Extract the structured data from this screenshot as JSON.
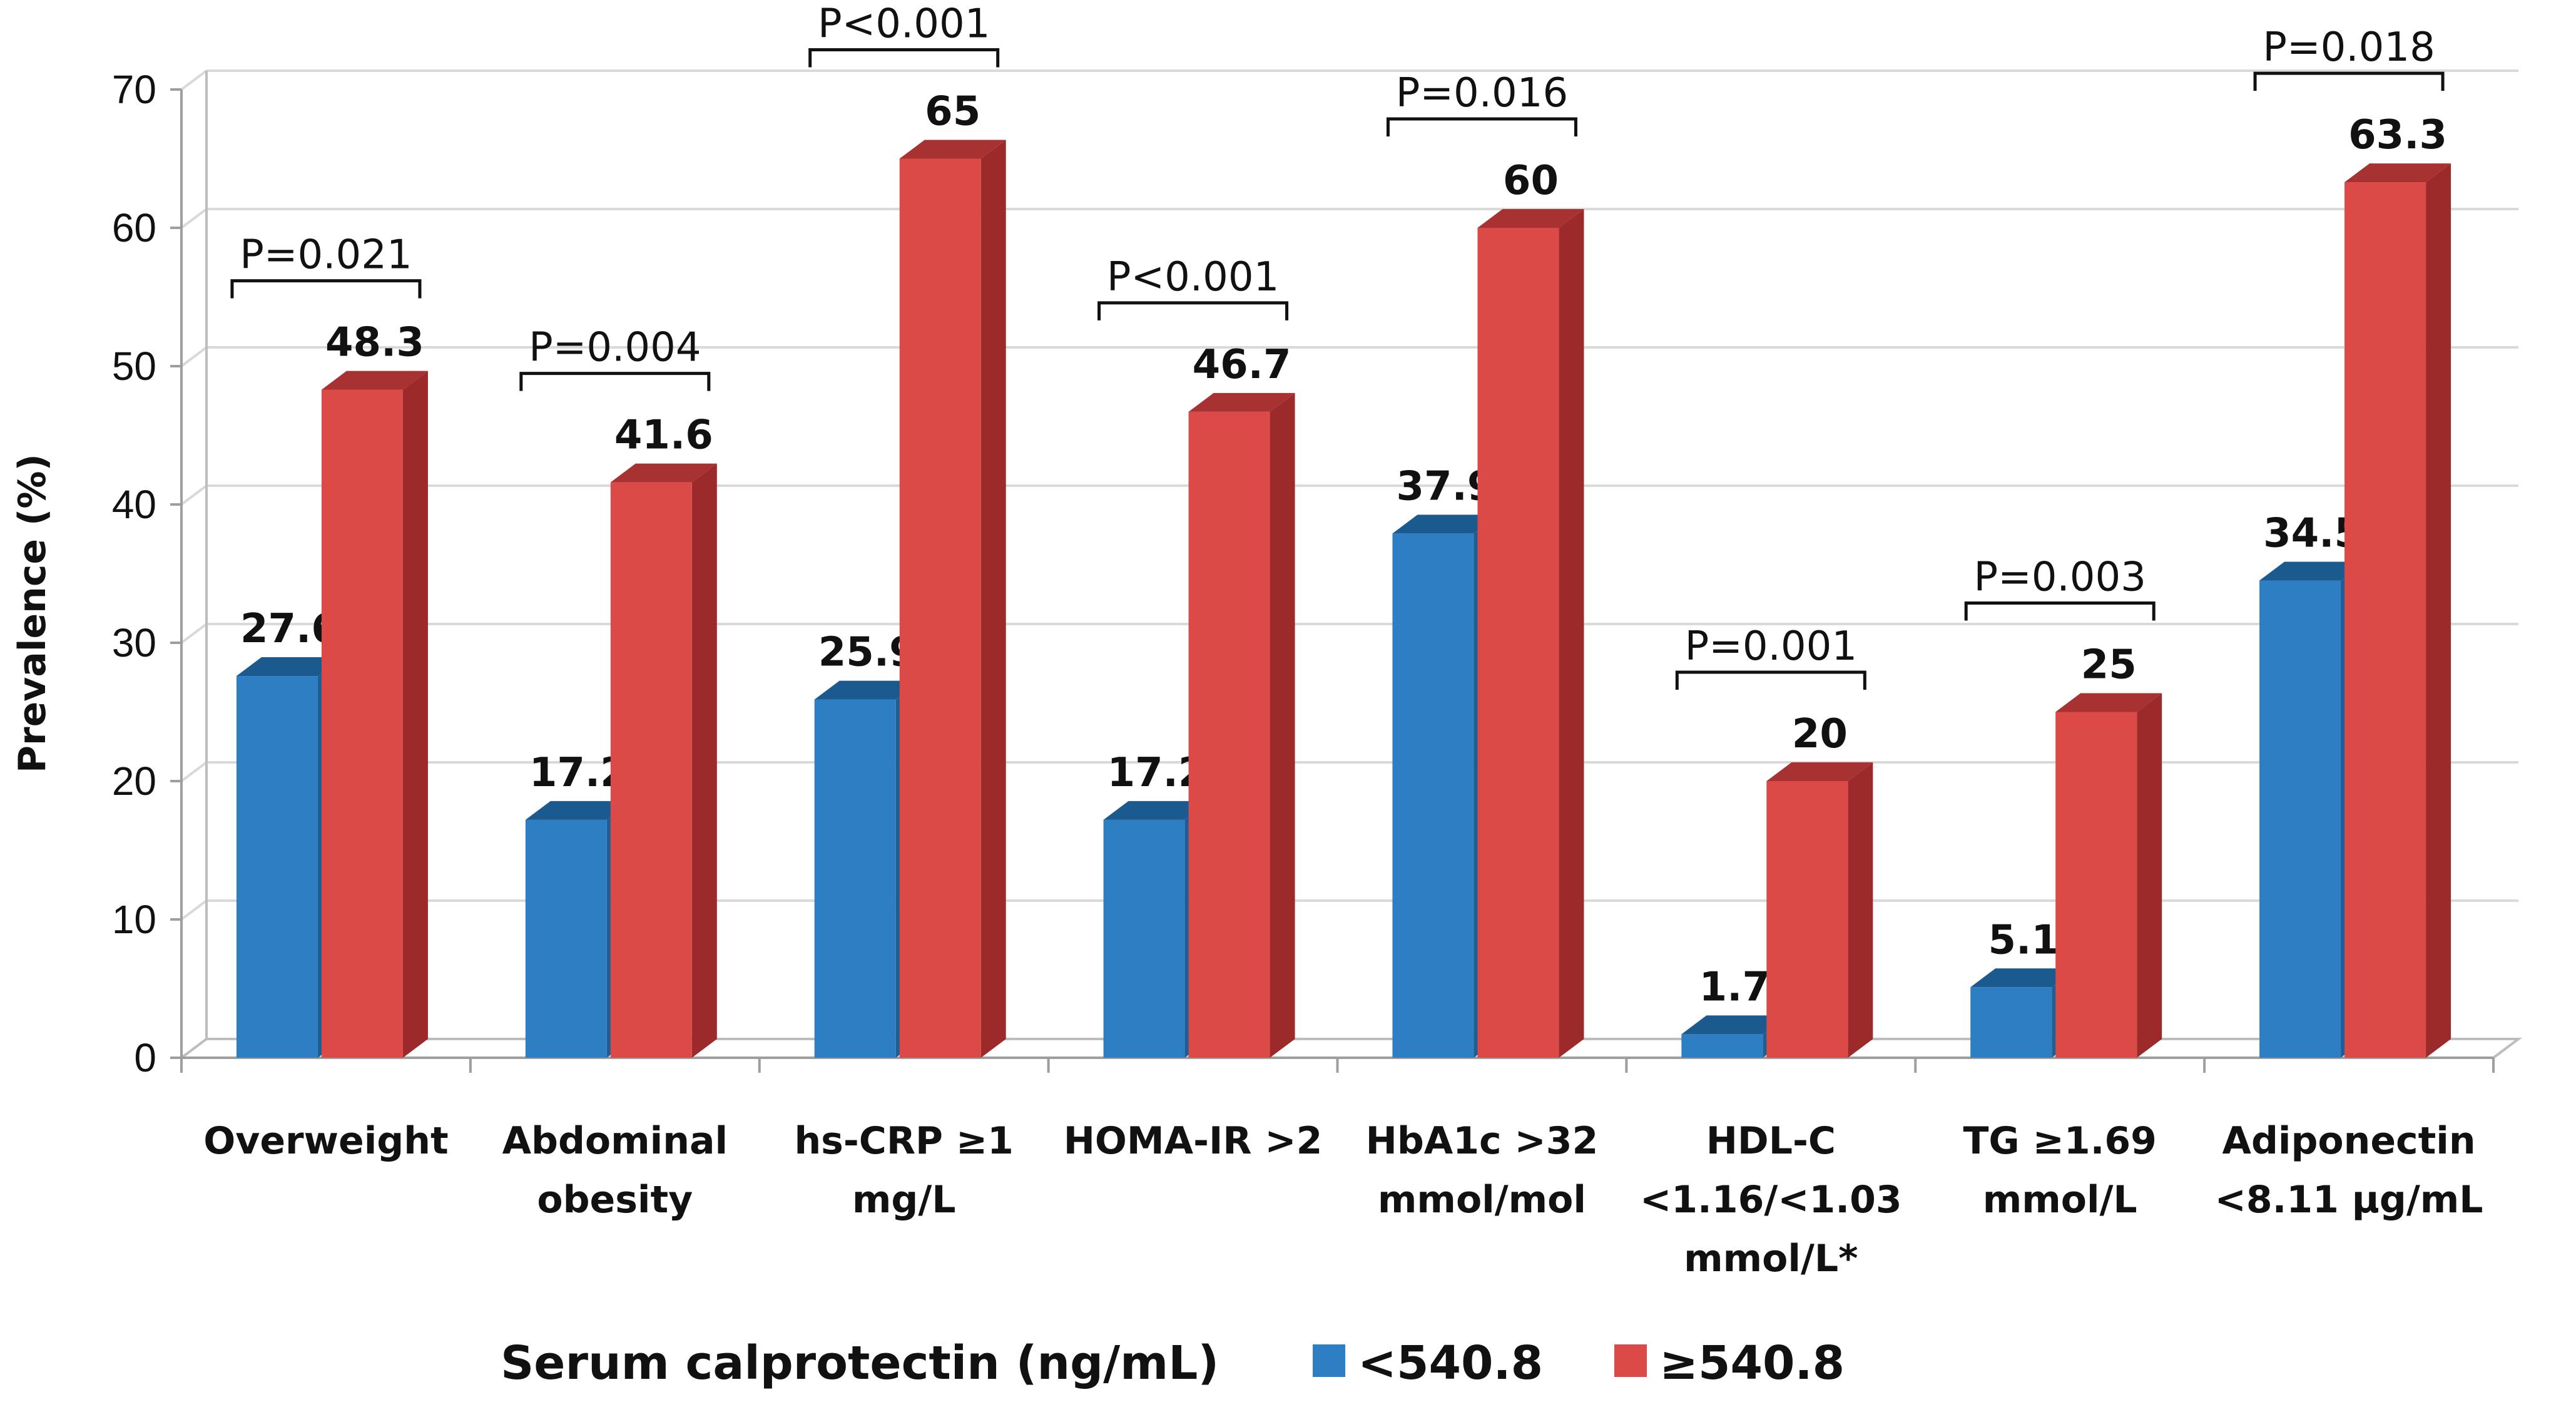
{
  "chart_data": {
    "type": "bar",
    "title": "",
    "xlabel": "",
    "ylabel": "Prevalence (%)",
    "ylim": [
      0,
      70
    ],
    "yticks": [
      "0",
      "10",
      "20",
      "30",
      "40",
      "50",
      "60",
      "70"
    ],
    "grid": true,
    "categories": [
      [
        "Overweight"
      ],
      [
        "Abdominal",
        "obesity"
      ],
      [
        "hs-CRP ≥1",
        "mg/L"
      ],
      [
        "HOMA-IR >2"
      ],
      [
        "HbA1c >32",
        "mmol/mol"
      ],
      [
        "HDL-C",
        "<1.16/<1.03",
        "mmol/L*"
      ],
      [
        "TG ≥1.69",
        "mmol/L"
      ],
      [
        "Adiponectin",
        "<8.11 μg/mL"
      ]
    ],
    "series": [
      {
        "name": "<540.8",
        "values": [
          27.6,
          17.2,
          25.9,
          17.2,
          37.9,
          1.7,
          5.1,
          34.5
        ],
        "labels": [
          "27.6",
          "17.2",
          "25.9",
          "17.2",
          "37.9",
          "1.7",
          "5.1",
          "34.5"
        ],
        "color": "#2E7EC4",
        "side_color": "#1F5E93",
        "top_color": "#1B5A8E"
      },
      {
        "name": "≥540.8",
        "values": [
          48.3,
          41.6,
          65,
          46.7,
          60,
          20,
          25,
          63.3
        ],
        "labels": [
          "48.3",
          "41.6",
          "65",
          "46.7",
          "60",
          "20",
          "25",
          "63.3"
        ],
        "color": "#DC4A48",
        "side_color": "#9C2A2A",
        "top_color": "#A83131"
      }
    ],
    "p_values": [
      "P=0.021",
      "P=0.004",
      "P<0.001",
      "P<0.001",
      "P=0.016",
      "P=0.001",
      "P=0.003",
      "P=0.018"
    ],
    "legend": {
      "title": "Serum calprotectin  (ng/mL)",
      "position": "bottom",
      "items": [
        "<540.8",
        "≥540.8"
      ]
    }
  }
}
